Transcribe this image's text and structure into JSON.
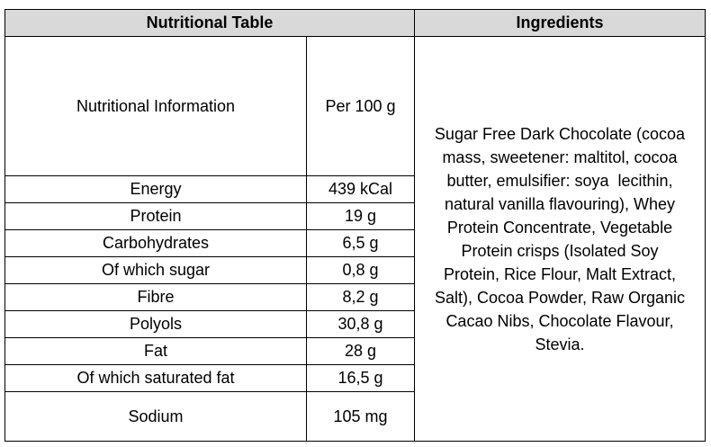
{
  "header": {
    "left": "Nutritional Table",
    "right": "Ingredients"
  },
  "table": {
    "columns": [
      "Nutritional Information",
      "Per 100 g"
    ],
    "rows": [
      [
        "Energy",
        "439 kCal"
      ],
      [
        "Protein",
        "19 g"
      ],
      [
        "Carbohydrates",
        "6,5 g"
      ],
      [
        "Of which sugar",
        "0,8 g"
      ],
      [
        "Fibre",
        "8,2 g"
      ],
      [
        "Polyols",
        "30,8 g"
      ],
      [
        "Fat",
        "28 g"
      ],
      [
        "Of which saturated fat",
        "16,5 g"
      ],
      [
        "Sodium",
        "105 mg"
      ]
    ]
  },
  "ingredients": {
    "lines": [
      "Sugar Free Dark Chocolate (cocoa",
      "mass, sweetener: maltitol, cocoa",
      "butter, emulsifier: soya  lecithin,",
      "natural vanilla flavouring), Whey",
      "Protein Concentrate, Vegetable",
      "Protein crisps (Isolated Soy",
      "Protein, Rice Flour, Malt Extract,",
      "Salt), Cocoa Powder, Raw Organic",
      "Cacao Nibs, Chocolate Flavour,",
      "Stevia."
    ]
  }
}
